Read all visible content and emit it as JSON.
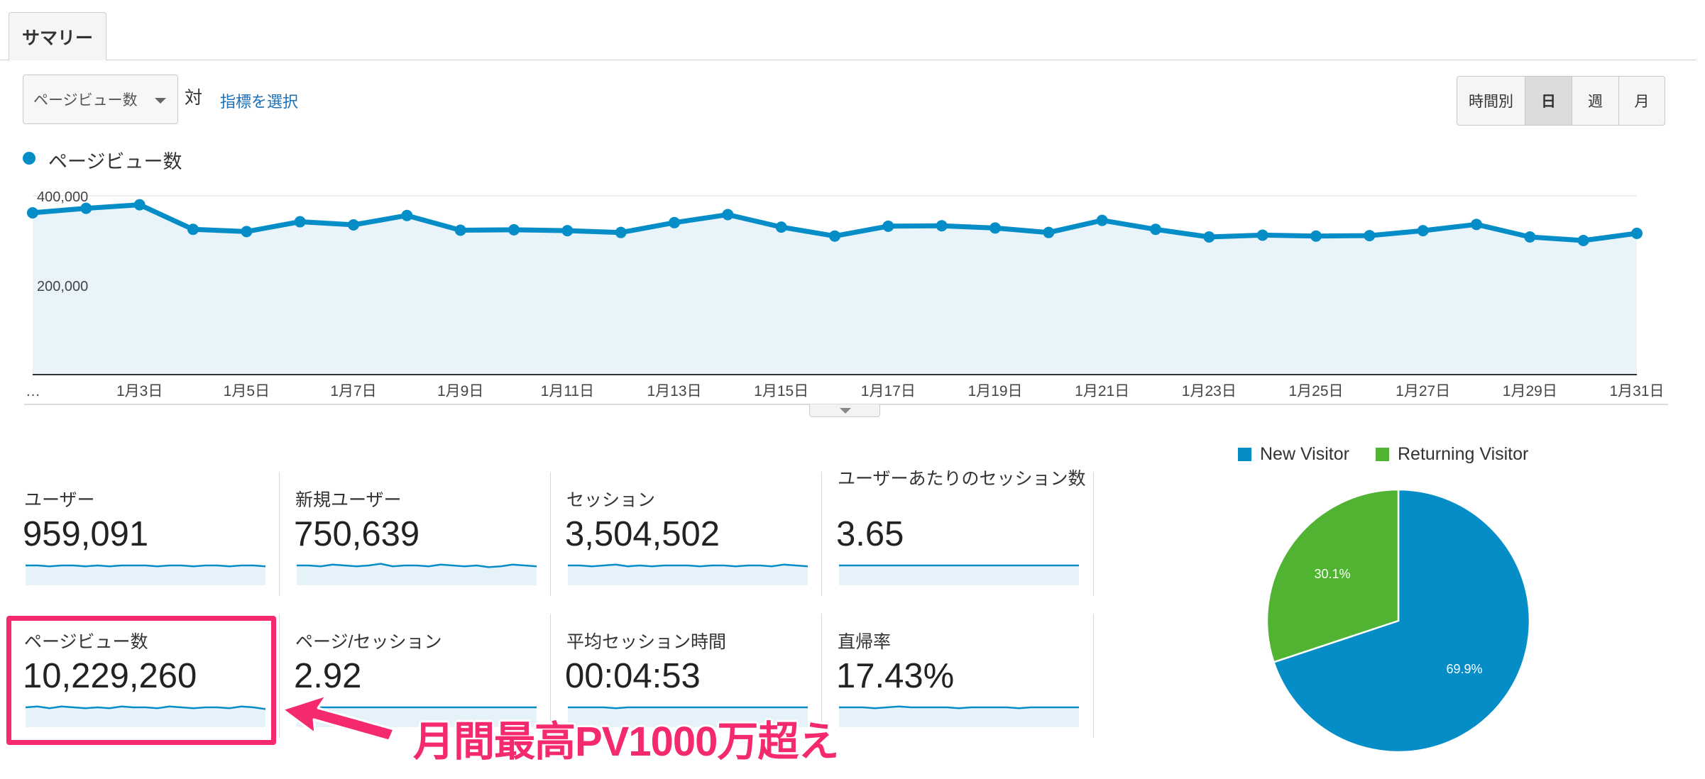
{
  "tabs": [
    {
      "label": "サマリー",
      "active": true
    }
  ],
  "toolbar": {
    "metric_select": "ページビュー数",
    "vs": "対",
    "select_metric": "指標を選択",
    "time_buttons": [
      {
        "label": "時間別",
        "active": false
      },
      {
        "label": "日",
        "active": true
      },
      {
        "label": "週",
        "active": false
      },
      {
        "label": "月",
        "active": false
      }
    ]
  },
  "chart_data": {
    "type": "line",
    "series": [
      {
        "name": "ページビュー数",
        "color": "#058dc7",
        "values": [
          362000,
          372000,
          380000,
          325000,
          320000,
          342000,
          335000,
          356000,
          323000,
          324000,
          322000,
          318000,
          340000,
          358000,
          330000,
          310000,
          332000,
          333000,
          328000,
          318000,
          345000,
          325000,
          308000,
          312000,
          310000,
          311000,
          322000,
          336000,
          308000,
          300000,
          316000
        ]
      }
    ],
    "x": [
      "…",
      "1月2日",
      "1月3日",
      "1月4日",
      "1月5日",
      "1月6日",
      "1月7日",
      "1月8日",
      "1月9日",
      "1月10日",
      "1月11日",
      "1月12日",
      "1月13日",
      "1月14日",
      "1月15日",
      "1月16日",
      "1月17日",
      "1月18日",
      "1月19日",
      "1月20日",
      "1月21日",
      "1月22日",
      "1月23日",
      "1月24日",
      "1月25日",
      "1月26日",
      "1月27日",
      "1月28日",
      "1月29日",
      "1月30日",
      "1月31日"
    ],
    "x_tick_labels": [
      "…",
      "1月3日",
      "1月5日",
      "1月7日",
      "1月9日",
      "1月11日",
      "1月13日",
      "1月15日",
      "1月17日",
      "1月19日",
      "1月21日",
      "1月23日",
      "1月25日",
      "1月27日",
      "1月29日",
      "1月31日"
    ],
    "y_tick_labels": [
      "400,000",
      "200,000"
    ],
    "ylim": [
      0,
      400000
    ],
    "grid": true,
    "area_fill": true
  },
  "metrics": [
    {
      "label": "ユーザー",
      "value": "959,091",
      "spark": [
        5,
        5,
        4,
        5,
        5,
        4,
        5,
        4,
        5,
        5,
        5,
        4,
        5,
        5,
        4,
        5,
        5,
        4,
        5,
        5,
        4
      ]
    },
    {
      "label": "新規ユーザー",
      "value": "750,639",
      "spark": [
        5,
        5,
        4,
        6,
        5,
        4,
        5,
        7,
        4,
        5,
        5,
        4,
        6,
        5,
        4,
        5,
        3,
        4,
        6,
        5,
        4
      ]
    },
    {
      "label": "セッション",
      "value": "3,504,502",
      "spark": [
        5,
        5,
        4,
        5,
        6,
        4,
        5,
        4,
        5,
        5,
        5,
        4,
        5,
        5,
        4,
        5,
        5,
        4,
        6,
        5,
        4
      ]
    },
    {
      "label": "ユーザーあたりのセッション数",
      "value": "3.65",
      "spark": [
        5,
        5,
        5,
        5,
        5,
        5,
        5,
        5,
        5,
        5,
        5,
        5,
        5,
        5,
        5,
        5,
        5,
        5,
        5,
        5,
        5
      ]
    },
    {
      "label": "ページビュー数",
      "value": "10,229,260",
      "spark": [
        5,
        6,
        4,
        6,
        5,
        4,
        5,
        4,
        6,
        5,
        5,
        4,
        6,
        5,
        4,
        5,
        5,
        4,
        6,
        5,
        3
      ]
    },
    {
      "label": "ページ/セッション",
      "value": "2.92",
      "spark": [
        5,
        5,
        5,
        5,
        5,
        5,
        5,
        5,
        5,
        5,
        5,
        5,
        5,
        5,
        5,
        5,
        5,
        5,
        5,
        5,
        5
      ]
    },
    {
      "label": "平均セッション時間",
      "value": "00:04:53",
      "spark": [
        5,
        5,
        5,
        5,
        4,
        5,
        5,
        5,
        5,
        5,
        5,
        5,
        5,
        5,
        5,
        5,
        5,
        5,
        5,
        5,
        5
      ]
    },
    {
      "label": "直帰率",
      "value": "17.43%",
      "spark": [
        5,
        5,
        5,
        4,
        5,
        6,
        5,
        5,
        5,
        5,
        4,
        5,
        5,
        5,
        5,
        4,
        5,
        5,
        5,
        5,
        5
      ]
    }
  ],
  "pie": {
    "type": "pie",
    "slices": [
      {
        "name": "New Visitor",
        "value": 69.9,
        "label": "69.9%",
        "color": "#058dc7"
      },
      {
        "name": "Returning Visitor",
        "value": 30.1,
        "label": "30.1%",
        "color": "#50b432"
      }
    ]
  },
  "annotation": {
    "text": "月間最高PV1000万超え",
    "color": "#f52a6e"
  }
}
